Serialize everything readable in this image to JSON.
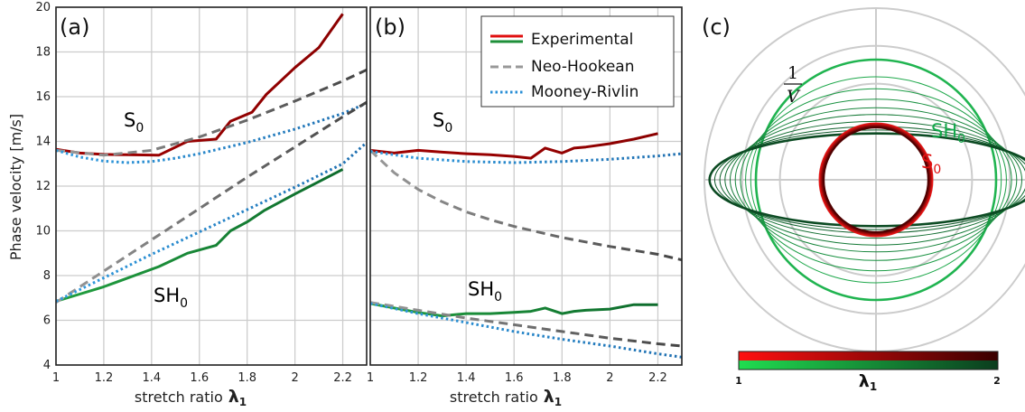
{
  "colors": {
    "s0_experimental": "#8b0000",
    "sh0_experimental": "#1e8f3a",
    "neo_hookean": "#777777",
    "mooney_rivlin": "#2a8fd6",
    "s0_label": "#e01010",
    "sh0_label": "#12a84a",
    "grid": "#cccccc"
  },
  "legend": {
    "experimental": "Experimental",
    "neo_hookean": "Neo-Hookean",
    "mooney_rivlin": "Mooney-Rivlin"
  },
  "labels": {
    "ylabel": "Phase velocity [m/s]",
    "xlabel_text": "stretch ratio",
    "xlabel_symbol": "λ",
    "xlabel_sub": "1",
    "s0_main": "S",
    "s0_sub": "0",
    "sh0_main": "SH",
    "sh0_sub": "0"
  },
  "chart_data": [
    {
      "type": "line",
      "panel": "(a)",
      "xlim": [
        1,
        2.3
      ],
      "ylim": [
        4,
        20
      ],
      "xticks": [
        "1",
        "1.2",
        "1.4",
        "1.6",
        "1.8",
        "2",
        "2.2"
      ],
      "yticks": [
        "4",
        "6",
        "8",
        "10",
        "12",
        "14",
        "16",
        "18",
        "20"
      ],
      "grid": true,
      "series": [
        {
          "name": "Experimental",
          "mode": "S0",
          "style": "solid",
          "x": [
            1.0,
            1.1,
            1.2,
            1.3,
            1.43,
            1.55,
            1.67,
            1.73,
            1.82,
            1.88,
            2.0,
            2.1,
            2.2
          ],
          "y": [
            13.65,
            13.48,
            13.42,
            13.4,
            13.38,
            14.0,
            14.1,
            14.9,
            15.3,
            16.1,
            17.3,
            18.2,
            19.7
          ]
        },
        {
          "name": "Neo-Hookean",
          "mode": "S0",
          "style": "dashed",
          "x": [
            1.0,
            1.2,
            1.4,
            1.6,
            1.8,
            2.0,
            2.2,
            2.3
          ],
          "y": [
            13.6,
            13.38,
            13.6,
            14.2,
            14.95,
            15.8,
            16.7,
            17.2
          ]
        },
        {
          "name": "Mooney-Rivlin",
          "mode": "S0",
          "style": "dotted",
          "x": [
            1.0,
            1.1,
            1.2,
            1.3,
            1.4,
            1.5,
            1.6,
            1.8,
            2.0,
            2.2,
            2.3
          ],
          "y": [
            13.6,
            13.3,
            13.12,
            13.05,
            13.1,
            13.25,
            13.45,
            13.95,
            14.55,
            15.25,
            15.7
          ]
        },
        {
          "name": "Experimental",
          "mode": "SH0",
          "style": "solid",
          "x": [
            1.0,
            1.2,
            1.43,
            1.55,
            1.67,
            1.73,
            1.8,
            1.87,
            2.0,
            2.1,
            2.2
          ],
          "y": [
            6.85,
            7.5,
            8.4,
            9.0,
            9.35,
            10.0,
            10.4,
            10.9,
            11.65,
            12.2,
            12.75
          ]
        },
        {
          "name": "Neo-Hookean",
          "mode": "SH0",
          "style": "dashed",
          "x": [
            1.0,
            1.2,
            1.4,
            1.6,
            1.8,
            2.0,
            2.2,
            2.3
          ],
          "y": [
            6.8,
            8.2,
            9.6,
            11.0,
            12.4,
            13.75,
            15.1,
            15.75
          ]
        },
        {
          "name": "Mooney-Rivlin",
          "mode": "SH0",
          "style": "dotted",
          "x": [
            1.0,
            1.2,
            1.4,
            1.6,
            1.8,
            2.0,
            2.2,
            2.3
          ],
          "y": [
            6.85,
            7.9,
            8.95,
            9.95,
            10.95,
            11.95,
            13.0,
            13.95
          ]
        }
      ]
    },
    {
      "type": "line",
      "panel": "(b)",
      "xlim": [
        1,
        2.3
      ],
      "ylim": [
        4,
        20
      ],
      "xticks": [
        "1",
        "1.2",
        "1.4",
        "1.6",
        "1.8",
        "2",
        "2.2"
      ],
      "yticks": [],
      "grid": true,
      "legend": "top-right",
      "series": [
        {
          "name": "Experimental",
          "mode": "S0",
          "style": "solid",
          "x": [
            1.0,
            1.1,
            1.2,
            1.3,
            1.4,
            1.5,
            1.6,
            1.67,
            1.73,
            1.8,
            1.85,
            1.9,
            2.0,
            2.1,
            2.2
          ],
          "y": [
            13.6,
            13.48,
            13.6,
            13.52,
            13.45,
            13.4,
            13.33,
            13.25,
            13.7,
            13.48,
            13.7,
            13.75,
            13.9,
            14.1,
            14.35
          ]
        },
        {
          "name": "Neo-Hookean",
          "mode": "S0",
          "style": "dashed",
          "x": [
            1.0,
            1.1,
            1.2,
            1.3,
            1.4,
            1.5,
            1.6,
            1.8,
            2.0,
            2.2,
            2.3
          ],
          "y": [
            13.6,
            12.6,
            11.85,
            11.3,
            10.85,
            10.5,
            10.2,
            9.7,
            9.3,
            8.95,
            8.7
          ]
        },
        {
          "name": "Mooney-Rivlin",
          "mode": "S0",
          "style": "dotted",
          "x": [
            1.0,
            1.2,
            1.4,
            1.6,
            1.8,
            2.0,
            2.2,
            2.3
          ],
          "y": [
            13.55,
            13.25,
            13.1,
            13.05,
            13.1,
            13.2,
            13.35,
            13.45
          ]
        },
        {
          "name": "Experimental",
          "mode": "SH0",
          "style": "solid",
          "x": [
            1.0,
            1.1,
            1.2,
            1.3,
            1.4,
            1.5,
            1.6,
            1.67,
            1.73,
            1.8,
            1.85,
            1.9,
            2.0,
            2.1,
            2.2
          ],
          "y": [
            6.75,
            6.55,
            6.35,
            6.2,
            6.3,
            6.3,
            6.35,
            6.4,
            6.55,
            6.3,
            6.4,
            6.45,
            6.5,
            6.7,
            6.7
          ]
        },
        {
          "name": "Neo-Hookean",
          "mode": "SH0",
          "style": "dashed",
          "x": [
            1.0,
            1.2,
            1.4,
            1.6,
            1.8,
            2.0,
            2.2,
            2.3
          ],
          "y": [
            6.8,
            6.45,
            6.1,
            5.8,
            5.5,
            5.2,
            4.95,
            4.85
          ]
        },
        {
          "name": "Mooney-Rivlin",
          "mode": "SH0",
          "style": "dotted",
          "x": [
            1.0,
            1.2,
            1.4,
            1.6,
            1.8,
            2.0,
            2.2,
            2.3
          ],
          "y": [
            6.75,
            6.3,
            5.9,
            5.5,
            5.15,
            4.85,
            4.5,
            4.35
          ]
        }
      ]
    },
    {
      "type": "polar",
      "panel": "(c)",
      "radial_label": "1/V",
      "radial_label_num": "1",
      "radial_label_den": "V",
      "grid": true,
      "colorbar": {
        "label": "λ",
        "label_sub": "1",
        "min": "1",
        "max": "2"
      },
      "sh0_rings": [
        {
          "rx": 0.7,
          "ry": 0.7
        },
        {
          "rx": 0.73,
          "ry": 0.6
        },
        {
          "rx": 0.76,
          "ry": 0.53
        },
        {
          "rx": 0.79,
          "ry": 0.47
        },
        {
          "rx": 0.82,
          "ry": 0.42
        },
        {
          "rx": 0.85,
          "ry": 0.38
        },
        {
          "rx": 0.88,
          "ry": 0.34
        },
        {
          "rx": 0.91,
          "ry": 0.31
        },
        {
          "rx": 0.94,
          "ry": 0.29
        },
        {
          "rx": 0.97,
          "ry": 0.27
        }
      ],
      "s0_rings": [
        0.328,
        0.322,
        0.316,
        0.31,
        0.305
      ]
    }
  ]
}
